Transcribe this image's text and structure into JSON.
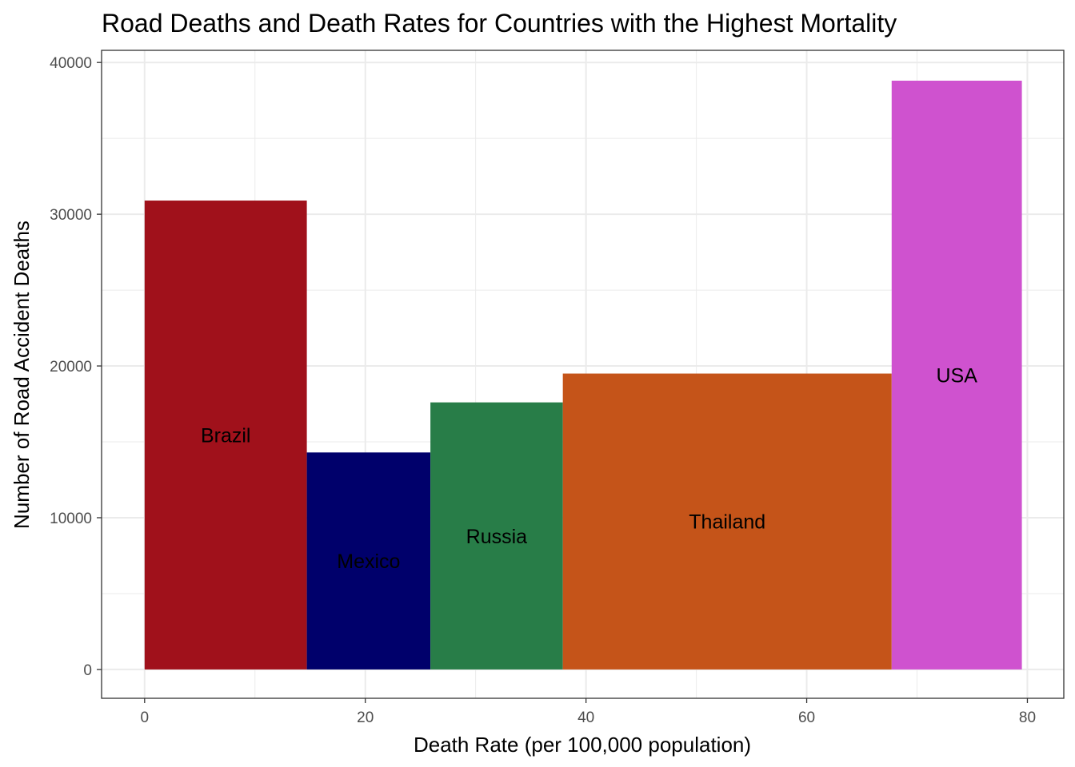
{
  "chart_data": {
    "type": "bar",
    "title": "Road Deaths and Death Rates for Countries with the Highest Mortality",
    "xlabel": "Death Rate (per 100,000 population)",
    "ylabel": "Number of Road Accident Deaths",
    "xlim": [
      -3.9,
      83.3
    ],
    "ylim": [
      -1900,
      40800
    ],
    "x_ticks": [
      0,
      20,
      40,
      60,
      80
    ],
    "y_ticks": [
      0,
      10000,
      20000,
      30000,
      40000
    ],
    "grid": true,
    "bars": [
      {
        "label": "Brazil",
        "x_start": 0.0,
        "x_end": 14.7,
        "value": 30900,
        "color": "#a0111b"
      },
      {
        "label": "Mexico",
        "x_start": 14.7,
        "x_end": 25.9,
        "value": 14300,
        "color": "#00006b"
      },
      {
        "label": "Russia",
        "x_start": 25.9,
        "x_end": 37.9,
        "value": 17600,
        "color": "#287d48"
      },
      {
        "label": "Thailand",
        "x_start": 37.9,
        "x_end": 67.7,
        "value": 19500,
        "color": "#c55419"
      },
      {
        "label": "USA",
        "x_start": 67.7,
        "x_end": 79.5,
        "value": 38800,
        "color": "#cf52cf"
      }
    ]
  }
}
